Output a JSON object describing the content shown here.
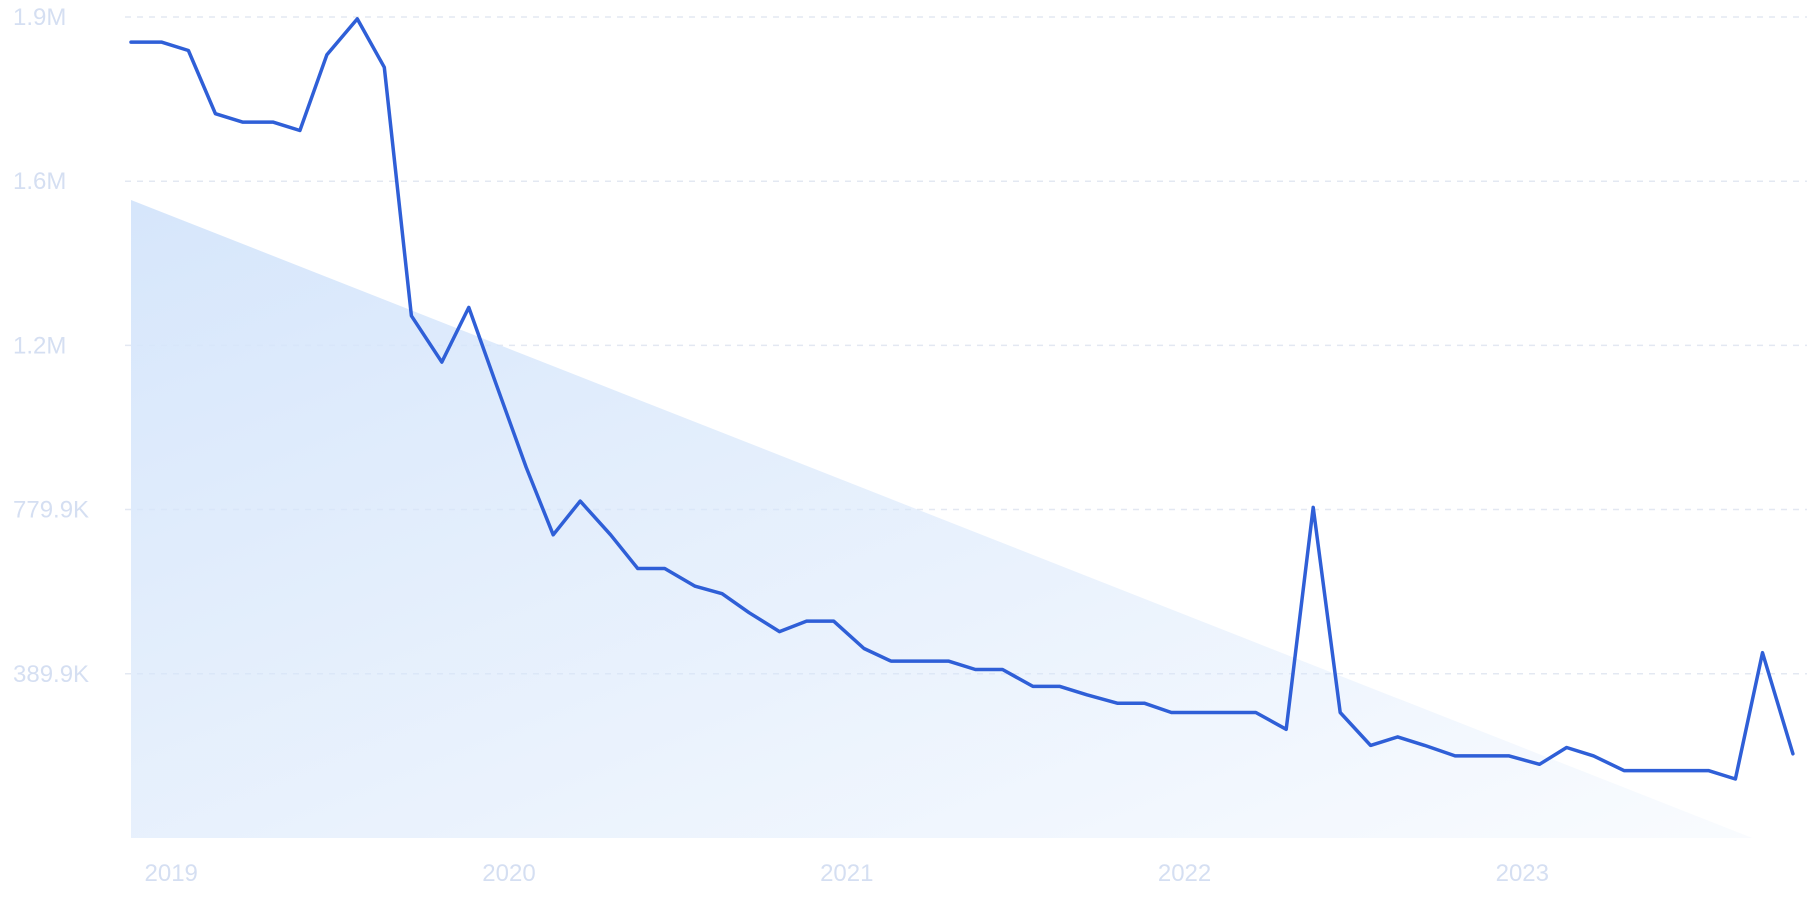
{
  "chart_data": {
    "type": "line",
    "title": "",
    "xlabel": "",
    "ylabel": "",
    "grid": true,
    "ylim": [
      0,
      1949500
    ],
    "xlim": [
      2018.96,
      2023.91
    ],
    "y_ticks": [
      {
        "value": 389900,
        "label": "389.9K"
      },
      {
        "value": 779900,
        "label": "779.9K"
      },
      {
        "value": 1169700,
        "label": "1.2M"
      },
      {
        "value": 1559600,
        "label": "1.6M"
      },
      {
        "value": 1949500,
        "label": "1.9M"
      }
    ],
    "x_ticks": [
      {
        "value": 2019,
        "label": "2019"
      },
      {
        "value": 2020,
        "label": "2020"
      },
      {
        "value": 2021,
        "label": "2021"
      },
      {
        "value": 2022,
        "label": "2022"
      },
      {
        "value": 2023,
        "label": "2023"
      }
    ],
    "trend_area": {
      "start": [
        2018.96,
        1515000
      ],
      "end": [
        2023.76,
        0
      ]
    },
    "series": [
      {
        "color": "#2f5fd7",
        "fill_color": "#d6e6fb",
        "points": [
          [
            2018.96,
            1890000
          ],
          [
            2019.05,
            1890000
          ],
          [
            2019.13,
            1870000
          ],
          [
            2019.21,
            1720000
          ],
          [
            2019.29,
            1700000
          ],
          [
            2019.38,
            1700000
          ],
          [
            2019.46,
            1680000
          ],
          [
            2019.54,
            1860000
          ],
          [
            2019.63,
            1945000
          ],
          [
            2019.71,
            1830000
          ],
          [
            2019.79,
            1240000
          ],
          [
            2019.88,
            1130000
          ],
          [
            2019.96,
            1260000
          ],
          [
            2020.04,
            1080000
          ],
          [
            2020.13,
            880000
          ],
          [
            2020.21,
            720000
          ],
          [
            2020.29,
            800000
          ],
          [
            2020.38,
            720000
          ],
          [
            2020.46,
            640000
          ],
          [
            2020.54,
            640000
          ],
          [
            2020.63,
            598000
          ],
          [
            2020.71,
            580000
          ],
          [
            2020.79,
            535000
          ],
          [
            2020.88,
            490000
          ],
          [
            2020.96,
            515000
          ],
          [
            2021.04,
            515000
          ],
          [
            2021.13,
            450000
          ],
          [
            2021.21,
            420000
          ],
          [
            2021.29,
            420000
          ],
          [
            2021.38,
            420000
          ],
          [
            2021.46,
            400000
          ],
          [
            2021.54,
            400000
          ],
          [
            2021.63,
            360000
          ],
          [
            2021.71,
            360000
          ],
          [
            2021.79,
            340000
          ],
          [
            2021.88,
            320000
          ],
          [
            2021.96,
            320000
          ],
          [
            2022.04,
            298000
          ],
          [
            2022.13,
            298000
          ],
          [
            2022.21,
            298000
          ],
          [
            2022.29,
            298000
          ],
          [
            2022.38,
            258000
          ],
          [
            2022.46,
            785000
          ],
          [
            2022.54,
            298000
          ],
          [
            2022.63,
            220000
          ],
          [
            2022.71,
            240000
          ],
          [
            2022.79,
            220000
          ],
          [
            2022.88,
            195000
          ],
          [
            2022.96,
            195000
          ],
          [
            2023.04,
            195000
          ],
          [
            2023.13,
            175000
          ],
          [
            2023.21,
            215000
          ],
          [
            2023.29,
            195000
          ],
          [
            2023.38,
            160000
          ],
          [
            2023.46,
            160000
          ],
          [
            2023.54,
            160000
          ],
          [
            2023.63,
            160000
          ],
          [
            2023.71,
            140000
          ],
          [
            2023.79,
            440000
          ],
          [
            2023.88,
            200000
          ]
        ]
      }
    ]
  }
}
